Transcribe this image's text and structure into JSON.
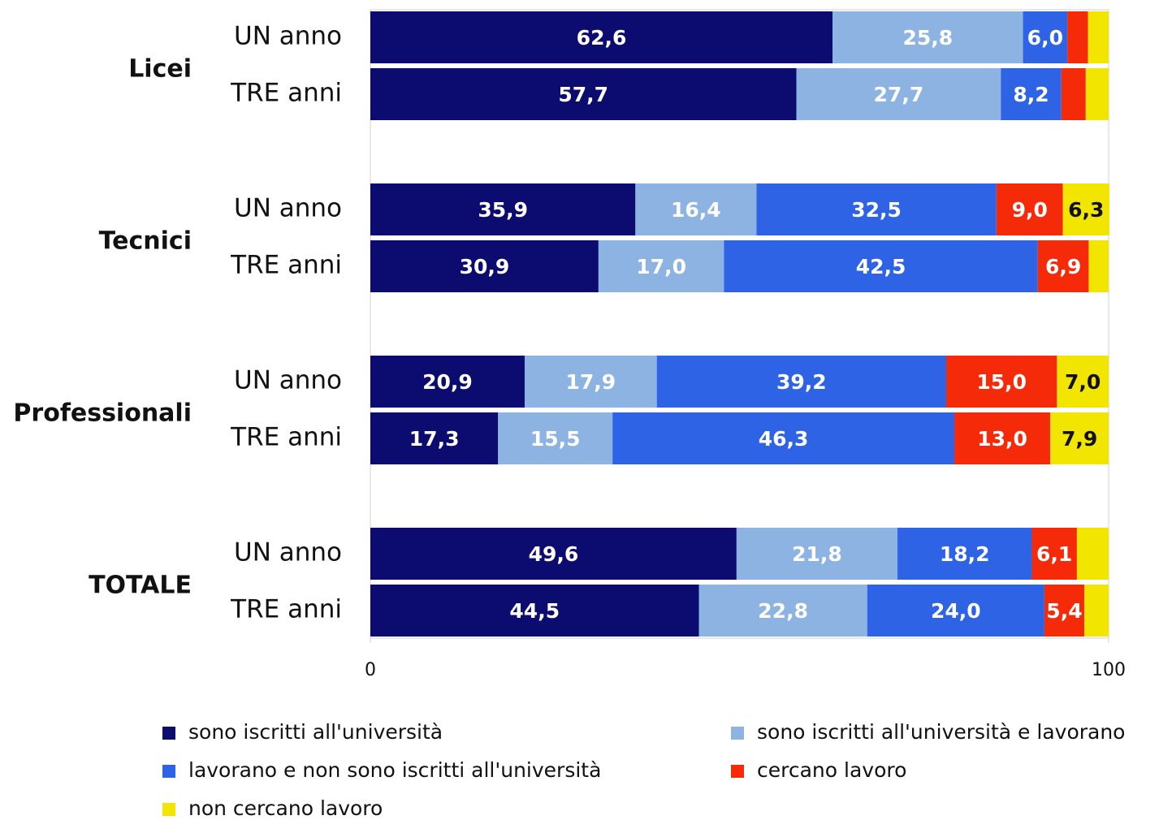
{
  "chart_data": {
    "type": "stacked-barh",
    "groups": [
      "Licei",
      "Tecnici",
      "Professionali",
      "TOTALE"
    ],
    "categories": [
      "UN anno",
      "TRE anni",
      "UN anno",
      "TRE anni",
      "UN anno",
      "TRE anni",
      "UN anno",
      "TRE anni"
    ],
    "series": [
      {
        "name": "sono iscritti all'università",
        "color": "#0b0b70",
        "text_color": "#ffffff",
        "values": [
          62.6,
          57.7,
          35.9,
          30.9,
          20.9,
          17.3,
          49.6,
          44.5
        ],
        "value_labels": [
          "62,6",
          "57,7",
          "35,9",
          "30,9",
          "20,9",
          "17,3",
          "49,6",
          "44,5"
        ]
      },
      {
        "name": "sono iscritti all'università e lavorano",
        "color": "#8db3e2",
        "text_color": "#ffffff",
        "values": [
          25.8,
          27.7,
          16.4,
          17.0,
          17.9,
          15.5,
          21.8,
          22.8
        ],
        "value_labels": [
          "25,8",
          "27,7",
          "16,4",
          "17,0",
          "17,9",
          "15,5",
          "21,8",
          "22,8"
        ]
      },
      {
        "name": "lavorano e non sono iscritti all'università",
        "color": "#2e63e6",
        "text_color": "#ffffff",
        "values": [
          6.0,
          8.2,
          32.5,
          42.5,
          39.2,
          46.3,
          18.2,
          24.0
        ],
        "value_labels": [
          "6,0",
          "8,2",
          "32,5",
          "42,5",
          "39,2",
          "46,3",
          "18,2",
          "24,0"
        ]
      },
      {
        "name": "cercano lavoro",
        "color": "#f52a08",
        "text_color": "#ffffff",
        "values": [
          2.8,
          3.3,
          9.0,
          6.9,
          15.0,
          13.0,
          6.1,
          5.4
        ],
        "value_labels": [
          null,
          null,
          "9,0",
          "6,9",
          "15,0",
          "13,0",
          "6,1",
          "5,4"
        ]
      },
      {
        "name": "non cercano lavoro",
        "color": "#f2e600",
        "text_color": "#111111",
        "values": [
          2.8,
          3.1,
          6.3,
          2.7,
          7.0,
          7.9,
          4.3,
          3.3
        ],
        "value_labels": [
          null,
          null,
          "6,3",
          null,
          "7,0",
          "7,9",
          null,
          null
        ]
      }
    ],
    "xlim": [
      0,
      100
    ],
    "xticks": [
      0,
      100
    ]
  }
}
